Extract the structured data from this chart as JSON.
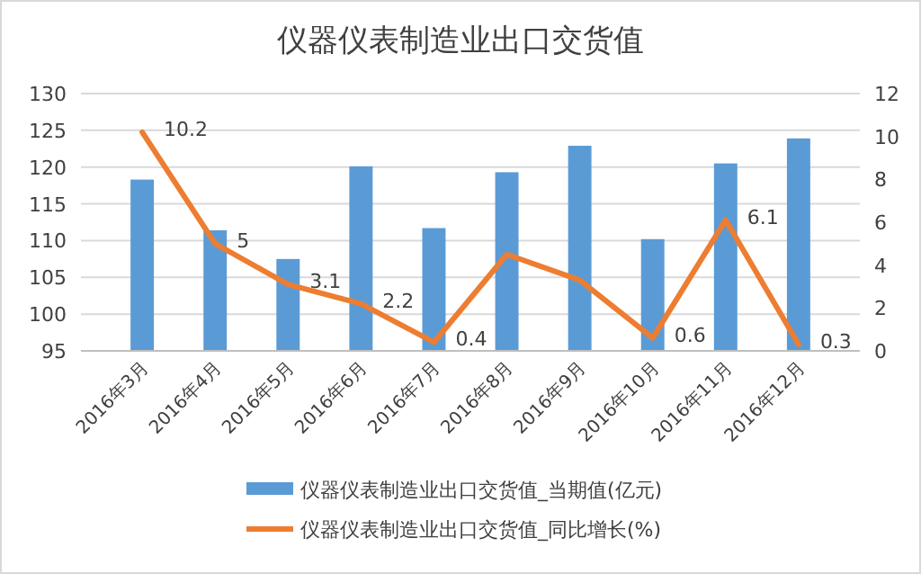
{
  "chart_data": {
    "type": "bar",
    "title": "仪器仪表制造业出口交货值",
    "categories": [
      "2016年3月",
      "2016年4月",
      "2016年5月",
      "2016年6月",
      "2016年7月",
      "2016年8月",
      "2016年9月",
      "2016年10月",
      "2016年11月",
      "2016年12月"
    ],
    "series": [
      {
        "name": "仪器仪表制造业出口交货值_当期值(亿元)",
        "color": "#5b9bd5",
        "values": [
          118.3,
          111.4,
          107.5,
          120.1,
          111.7,
          119.3,
          122.9,
          110.2,
          120.5,
          123.9
        ]
      },
      {
        "name": "仪器仪表制造业出口交货值_同比增长(%)",
        "type": "line",
        "axis": "y2",
        "color": "#ed7d31",
        "values": [
          10.2,
          5,
          3.1,
          2.2,
          0.4,
          4.5,
          3.3,
          0.6,
          6.1,
          0.3
        ],
        "value_labels": [
          "10.2",
          "5",
          "3.1",
          "2.2",
          "0.4",
          null,
          null,
          "0.6",
          "6.1",
          "0.3"
        ]
      }
    ],
    "ylim": [
      95,
      130
    ],
    "yticks": [
      95,
      100,
      105,
      110,
      115,
      120,
      125,
      130
    ],
    "y2lim": [
      0,
      12
    ],
    "y2ticks": [
      0,
      2,
      4,
      6,
      8,
      10,
      12
    ],
    "grid": "y",
    "legend": "bottom",
    "marker": "none",
    "line_style": "solid"
  }
}
